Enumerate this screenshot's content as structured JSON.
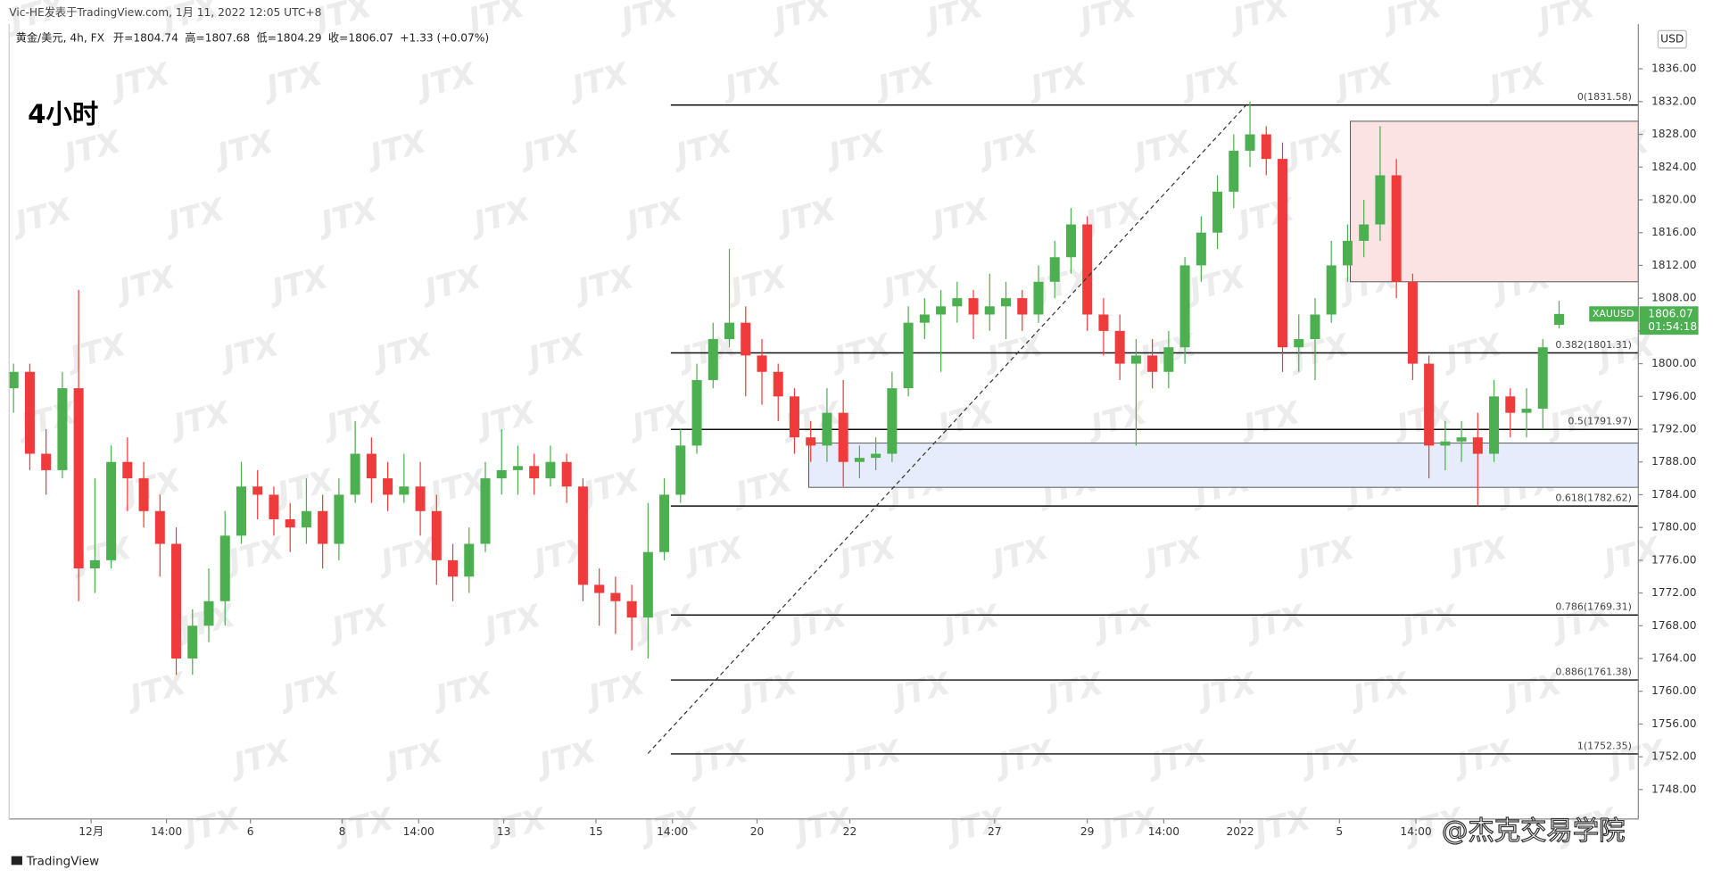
{
  "chart_data": {
    "type": "candlestick",
    "header": "Vic-HE发表于TradingView.com, 1月 11, 2022 12:05 UTC+8",
    "symbol_info": "黄金/美元, 4h, FX",
    "legend_ohlc": [
      {
        "label": "开",
        "value": 1804.74
      },
      {
        "label": "高",
        "value": 1807.68
      },
      {
        "label": "低",
        "value": 1804.29
      },
      {
        "label": "收",
        "value": 1806.07
      }
    ],
    "change": "+1.33 (+0.07%)",
    "timeframe_label": "4小时",
    "currency": "USD",
    "watermark": "JTX",
    "credit": "@杰克交易学院",
    "footer": "TradingView",
    "up_color": "#4caf50",
    "down_color": "#ef3b3b",
    "open": [
      1797,
      1799,
      1789,
      1787,
      1797,
      1775,
      1776,
      1788,
      1786,
      1782,
      1778,
      1764,
      1768,
      1771,
      1779,
      1785,
      1784,
      1781,
      1780,
      1782,
      1778,
      1784,
      1789,
      1786,
      1784,
      1785,
      1782,
      1776,
      1774,
      1778,
      1786,
      1787,
      1787.5,
      1786,
      1788,
      1785,
      1773,
      1772,
      1771,
      1769,
      1777,
      1784,
      1790,
      1798,
      1803,
      1805,
      1801,
      1799,
      1796,
      1791,
      1790,
      1794,
      1788,
      1788.5,
      1789,
      1797,
      1805,
      1806,
      1807,
      1808,
      1806,
      1807,
      1808,
      1806,
      1810,
      1813,
      1817,
      1806,
      1804,
      1800,
      1801,
      1799,
      1802,
      1812,
      1816,
      1821,
      1826,
      1828,
      1825,
      1802,
      1803,
      1806,
      1812,
      1815,
      1817,
      1823,
      1810,
      1800,
      1790,
      1790.5,
      1791,
      1789,
      1796,
      1794,
      1794.5,
      1804.74
    ],
    "high": [
      1800,
      1800,
      1792,
      1799,
      1809,
      1786,
      1790,
      1791,
      1788,
      1784,
      1780,
      1770,
      1775,
      1782,
      1788,
      1787,
      1785,
      1783,
      1786,
      1784,
      1786,
      1793,
      1791,
      1788,
      1789,
      1788,
      1784,
      1778,
      1780,
      1788,
      1792,
      1790,
      1789,
      1790,
      1789,
      1786,
      1775,
      1774,
      1773,
      1783,
      1786,
      1792,
      1800,
      1805,
      1814,
      1807,
      1803,
      1800,
      1797,
      1793,
      1797,
      1798,
      1790,
      1791,
      1799,
      1807,
      1808,
      1809,
      1810,
      1809,
      1811,
      1810,
      1809,
      1812,
      1815,
      1819,
      1818,
      1808,
      1806,
      1803,
      1803,
      1804,
      1813,
      1818,
      1823,
      1828,
      1832,
      1829,
      1827,
      1806,
      1808,
      1815,
      1817,
      1820,
      1829,
      1825,
      1811,
      1801,
      1793,
      1793,
      1794,
      1798,
      1797,
      1797,
      1803,
      1807.68
    ],
    "low": [
      1794,
      1787,
      1784,
      1786,
      1771,
      1772,
      1775,
      1782,
      1780,
      1774,
      1762,
      1762,
      1766,
      1768,
      1778,
      1781,
      1779,
      1777,
      1778,
      1775,
      1776,
      1783,
      1783,
      1782,
      1783,
      1779,
      1773,
      1771,
      1772,
      1777,
      1784,
      1784,
      1784,
      1785,
      1783,
      1771,
      1768,
      1767,
      1765,
      1764,
      1776,
      1783,
      1789,
      1797,
      1802,
      1796,
      1795,
      1793,
      1789,
      1788,
      1788,
      1785,
      1786,
      1787,
      1788,
      1796,
      1803,
      1799,
      1805,
      1803,
      1804,
      1803,
      1804,
      1805,
      1808,
      1811,
      1804,
      1801,
      1798,
      1790,
      1797,
      1797,
      1800,
      1810,
      1814,
      1819,
      1824,
      1823,
      1799,
      1799,
      1798,
      1805,
      1810,
      1813,
      1815,
      1808,
      1798,
      1786,
      1787,
      1788,
      1782.6,
      1788,
      1791,
      1791,
      1792,
      1804.29
    ],
    "close": [
      1799,
      1789,
      1787,
      1797,
      1775,
      1776,
      1788,
      1786,
      1782,
      1778,
      1764,
      1768,
      1771,
      1779,
      1785,
      1784,
      1781,
      1780,
      1782,
      1778,
      1784,
      1789,
      1786,
      1784,
      1785,
      1782,
      1776,
      1774,
      1778,
      1786,
      1787,
      1787.5,
      1786,
      1788,
      1785,
      1773,
      1772,
      1771,
      1769,
      1777,
      1784,
      1790,
      1798,
      1803,
      1805,
      1801,
      1799,
      1796,
      1791,
      1790,
      1794,
      1788,
      1788.5,
      1789,
      1797,
      1805,
      1806,
      1807,
      1808,
      1806,
      1807,
      1808,
      1806,
      1810,
      1813,
      1817,
      1806,
      1804,
      1800,
      1801,
      1799,
      1802,
      1812,
      1816,
      1821,
      1826,
      1828,
      1825,
      1802,
      1803,
      1806,
      1812,
      1815,
      1817,
      1823,
      1810,
      1800,
      1790,
      1790.5,
      1791,
      1789,
      1796,
      1794,
      1794.5,
      1802,
      1806.07
    ],
    "xlim": [
      -0.27,
      99.87
    ],
    "xticks": [
      {
        "value": 4.77,
        "label": "12月"
      },
      {
        "value": 9.4,
        "label": "14:00"
      },
      {
        "value": 14.56,
        "label": "6"
      },
      {
        "value": 20.2,
        "label": "8"
      },
      {
        "value": 24.9,
        "label": "14:00"
      },
      {
        "value": 30.13,
        "label": "13"
      },
      {
        "value": 35.8,
        "label": "15"
      },
      {
        "value": 40.5,
        "label": "14:00"
      },
      {
        "value": 45.7,
        "label": "20"
      },
      {
        "value": 51.4,
        "label": "22"
      },
      {
        "value": 60.3,
        "label": "27"
      },
      {
        "value": 66.0,
        "label": "29"
      },
      {
        "value": 70.7,
        "label": "14:00"
      },
      {
        "value": 75.4,
        "label": "2022"
      },
      {
        "value": 81.5,
        "label": "5"
      },
      {
        "value": 86.2,
        "label": "14:00"
      }
    ],
    "ylim": [
      1744.4,
      1841.47
    ],
    "yticks": [
      {
        "value": 1748,
        "label": "1748.00"
      },
      {
        "value": 1752,
        "label": "1752.00"
      },
      {
        "value": 1756,
        "label": "1756.00"
      },
      {
        "value": 1760,
        "label": "1760.00"
      },
      {
        "value": 1764,
        "label": "1764.00"
      },
      {
        "value": 1768,
        "label": "1768.00"
      },
      {
        "value": 1772,
        "label": "1772.00"
      },
      {
        "value": 1776,
        "label": "1776.00"
      },
      {
        "value": 1780,
        "label": "1780.00"
      },
      {
        "value": 1784,
        "label": "1784.00"
      },
      {
        "value": 1788,
        "label": "1788.00"
      },
      {
        "value": 1792,
        "label": "1792.00"
      },
      {
        "value": 1796,
        "label": "1796.00"
      },
      {
        "value": 1800,
        "label": "1800.00"
      },
      {
        "value": 1804,
        "label": "1804.00"
      },
      {
        "value": 1808,
        "label": "1808.00"
      },
      {
        "value": 1812,
        "label": "1812.00"
      },
      {
        "value": 1816,
        "label": "1816.00"
      },
      {
        "value": 1820,
        "label": "1820.00"
      },
      {
        "value": 1824,
        "label": "1824.00"
      },
      {
        "value": 1828,
        "label": "1828.00"
      },
      {
        "value": 1832,
        "label": "1832.00"
      },
      {
        "value": 1836,
        "label": "1836.00"
      }
    ],
    "fib_levels": [
      {
        "value": 1831.58,
        "label": "0(1831.58)"
      },
      {
        "value": 1801.31,
        "label": "0.382(1801.31)"
      },
      {
        "value": 1791.97,
        "label": "0.5(1791.97)"
      },
      {
        "value": 1782.62,
        "label": "0.618(1782.62)"
      },
      {
        "value": 1769.31,
        "label": "0.786(1769.31)"
      },
      {
        "value": 1761.38,
        "label": "0.886(1761.38)"
      },
      {
        "value": 1752.35,
        "label": "1(1752.35)"
      }
    ],
    "zones": [
      {
        "top": 1829.6,
        "bottom": 1810,
        "start": 82.17,
        "color": "#fbe3e3"
      },
      {
        "top": 1790.3,
        "bottom": 1784.9,
        "start": 48.88,
        "color": "#e6ecfb"
      }
    ],
    "last_price": {
      "symbol": "XAUUSD",
      "price": 1806.07,
      "countdown": "01:54:18"
    }
  }
}
